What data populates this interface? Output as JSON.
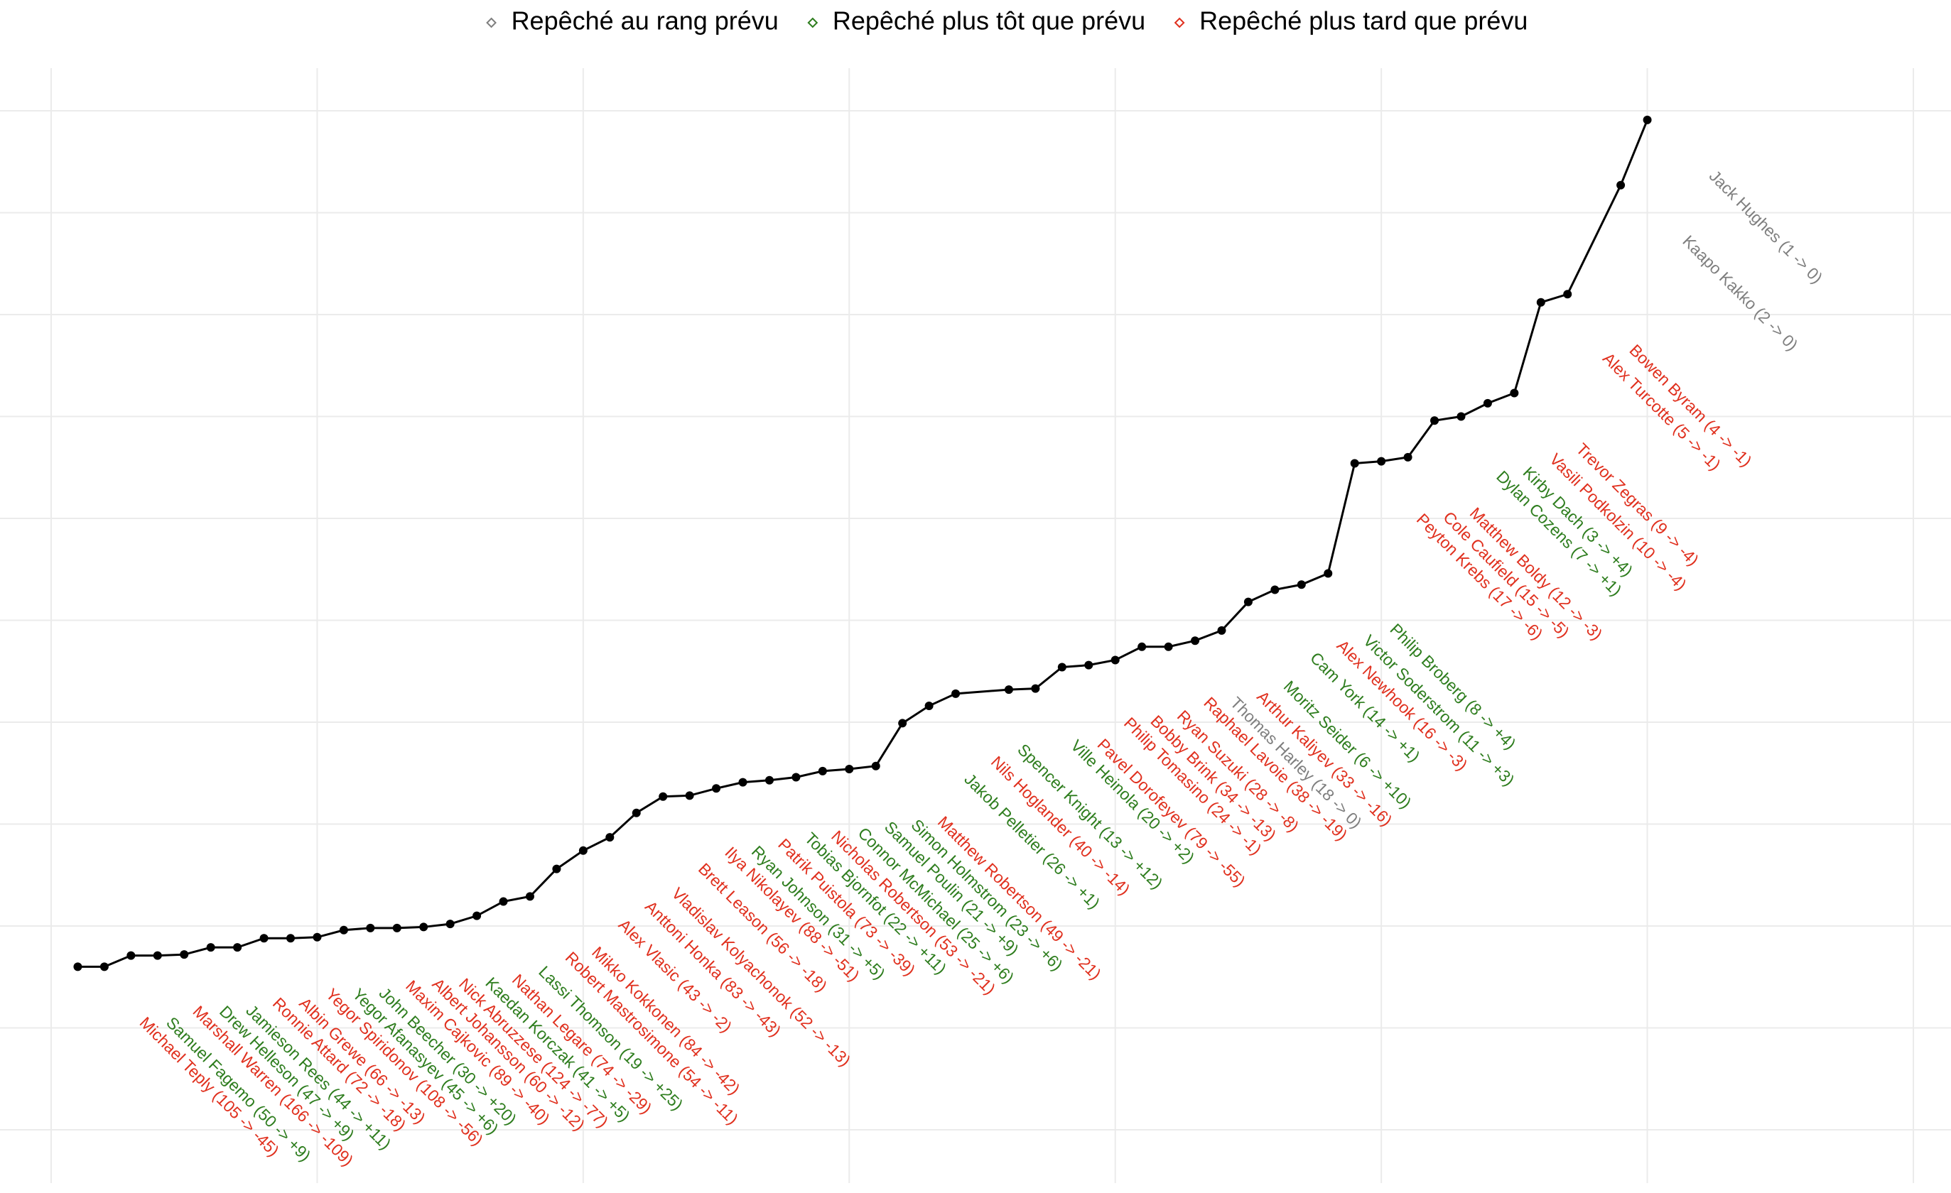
{
  "chart_data": {
    "type": "line",
    "x": [
      1,
      2,
      3,
      4,
      5,
      6,
      7,
      8,
      9,
      10,
      11,
      12,
      13,
      14,
      15,
      16,
      17,
      18,
      19,
      20,
      21,
      22,
      23,
      24,
      25,
      26,
      27,
      28,
      29,
      30,
      31,
      32,
      33,
      34,
      36,
      37,
      38,
      39,
      40,
      41,
      42,
      43,
      44,
      45,
      46,
      47,
      48,
      49,
      50,
      51,
      52,
      53,
      54,
      55,
      56,
      57,
      59,
      60
    ],
    "values": [
      1.6,
      1.6,
      1.71,
      1.71,
      1.72,
      1.79,
      1.79,
      1.88,
      1.88,
      1.89,
      1.96,
      1.98,
      1.98,
      1.99,
      2.02,
      2.1,
      2.24,
      2.29,
      2.56,
      2.74,
      2.87,
      3.11,
      3.27,
      3.28,
      3.35,
      3.41,
      3.43,
      3.46,
      3.52,
      3.54,
      3.57,
      3.99,
      4.16,
      4.28,
      4.32,
      4.33,
      4.54,
      4.56,
      4.61,
      4.74,
      4.74,
      4.8,
      4.9,
      5.18,
      5.3,
      5.35,
      5.46,
      6.54,
      6.56,
      6.6,
      6.96,
      7.0,
      7.13,
      7.23,
      8.12,
      8.2,
      9.27,
      9.91
    ],
    "labels": [
      "Michael Teply (105 -> -45)",
      "Samuel Fagemo (50 -> +9)",
      "Marshall Warren (166 -> -109)",
      "Drew Helleson (47 -> +9)",
      "Jamieson Rees (44 -> +11)",
      "Ronnie Attard (72 -> -18)",
      "Albin Grewe (66 -> -13)",
      "Yegor Spiridonov (108 -> -56)",
      "Yegor Afanasyev (45 -> +6)",
      "John Beecher (30 -> +20)",
      "Maxim Cajkovic (89 -> -40)",
      "Albert Johansson (60 -> -12)",
      "Nick Abruzzese (124 -> -77)",
      "Kaedan Korczak (41 -> +5)",
      "Nathan Legare (74 -> -29)",
      "Lassi Thomson (19 -> +25)",
      "Robert Mastrosimone (54 -> -11)",
      "Mikko Kokkonen (84 -> -42)",
      "Alex Vlasic (43 -> -2)",
      "Anttoni Honka (83 -> -43)",
      "Vladislav Kolyachonok (52 -> -13)",
      "Brett Leason (56 -> -18)",
      "Ilya Nikolayev (88 -> -51)",
      "Ryan Johnson (31 -> +5)",
      "Patrik Puistola (73 -> -39)",
      "Tobias Bjornfot (22 -> +11)",
      "Nicholas Robertson (53 -> -21)",
      "Connor McMichael (25 -> +6)",
      "Samuel Poulin (21 -> +9)",
      "Simon Holmstrom (23 -> +6)",
      "Matthew Robertson (49 -> -21)",
      "Jakob Pelletier (26 -> +1)",
      "Nils Hoglander (40 -> -14)",
      "Spencer Knight (13 -> +12)",
      "Ville Heinola (20 -> +2)",
      "Pavel Dorofeyev (79 -> -55)",
      "Philip Tomasino (24 -> -1)",
      "Bobby Brink (34 -> -13)",
      "Ryan Suzuki (28 -> -8)",
      "Raphael Lavoie (38 -> -19)",
      "Thomas Harley (18 -> 0)",
      "Arthur Kaliyev (33 -> -16)",
      "Moritz Seider (6 -> +10)",
      "Cam York (14 -> +1)",
      "Alex Newhook (16 -> -3)",
      "Victor Soderstrom (11 -> +3)",
      "Philip Broberg (8 -> +4)",
      "Peyton Krebs (17 -> -6)",
      "Cole Caufield (15 -> -5)",
      "Matthew Boldy (12 -> -3)",
      "Dylan Cozens (7 -> +1)",
      "Kirby Dach (3 -> +4)",
      "Vasili Podkolzin (10 -> -4)",
      "Trevor Zegras (9 -> -4)",
      "Alex Turcotte (5 -> -1)",
      "Bowen Byram (4 -> -1)",
      "Kaapo Kakko (2 -> 0)",
      "Jack Hughes (1 -> 0)"
    ],
    "label_groups": [
      2,
      1,
      2,
      1,
      1,
      2,
      2,
      2,
      1,
      1,
      2,
      2,
      2,
      1,
      2,
      1,
      2,
      2,
      2,
      2,
      2,
      2,
      2,
      1,
      2,
      1,
      2,
      1,
      1,
      1,
      2,
      1,
      2,
      1,
      1,
      2,
      2,
      2,
      2,
      2,
      0,
      2,
      1,
      1,
      2,
      1,
      1,
      2,
      2,
      2,
      1,
      1,
      2,
      2,
      2,
      2,
      0,
      0
    ],
    "groups": [
      {
        "name": "Repêché au rang prévu",
        "color": "#7f7f7f"
      },
      {
        "name": "Repêché plus tôt que prévu",
        "color": "#2e7d1e"
      },
      {
        "name": "Repêché plus tard que prévu",
        "color": "#e0301e"
      }
    ],
    "line_color": "#000000",
    "xlim": [
      0,
      70
    ],
    "ylim": [
      0,
      10
    ],
    "xticks": [
      0,
      10,
      20,
      30,
      40,
      50,
      60,
      70
    ],
    "yticks": [
      0,
      1,
      2,
      3,
      4,
      5,
      6,
      7,
      8,
      9,
      10
    ],
    "grid": true
  }
}
